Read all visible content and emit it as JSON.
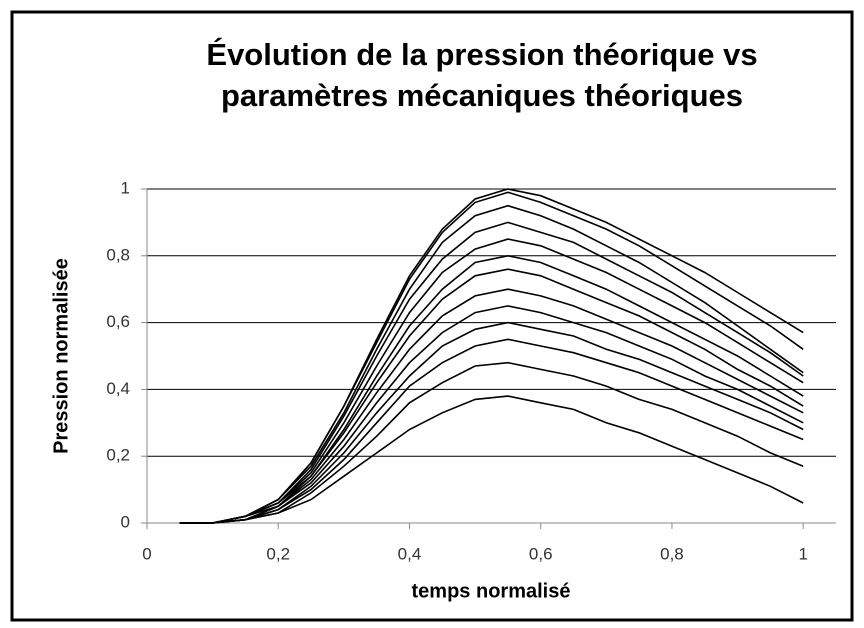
{
  "chart_data": {
    "type": "line",
    "title": [
      "Évolution de la pression théorique vs",
      "paramètres mécaniques théoriques"
    ],
    "xlabel": "temps normalisé",
    "ylabel": "Pression normalisée",
    "x": [
      0.05,
      0.1,
      0.15,
      0.2,
      0.25,
      0.3,
      0.35,
      0.4,
      0.45,
      0.5,
      0.55,
      0.6,
      0.65,
      0.7,
      0.75,
      0.8,
      0.85,
      0.9,
      0.95,
      1
    ],
    "series": [
      {
        "color": "#000000",
        "values": [
          0,
          0,
          0.02,
          0.07,
          0.18,
          0.35,
          0.55,
          0.74,
          0.88,
          0.97,
          1.0,
          0.98,
          0.94,
          0.9,
          0.85,
          0.8,
          0.75,
          0.69,
          0.63,
          0.57
        ]
      },
      {
        "color": "#000000",
        "values": [
          0,
          0,
          0.02,
          0.07,
          0.18,
          0.35,
          0.54,
          0.73,
          0.87,
          0.96,
          0.99,
          0.96,
          0.92,
          0.88,
          0.83,
          0.77,
          0.71,
          0.65,
          0.59,
          0.52
        ]
      },
      {
        "color": "#000000",
        "values": [
          0,
          0,
          0.02,
          0.07,
          0.17,
          0.33,
          0.52,
          0.7,
          0.84,
          0.92,
          0.95,
          0.92,
          0.88,
          0.83,
          0.78,
          0.72,
          0.66,
          0.59,
          0.52,
          0.45
        ]
      },
      {
        "color": "#000000",
        "values": [
          0,
          0,
          0.02,
          0.06,
          0.16,
          0.32,
          0.5,
          0.67,
          0.79,
          0.87,
          0.9,
          0.87,
          0.84,
          0.79,
          0.74,
          0.69,
          0.63,
          0.57,
          0.51,
          0.44
        ]
      },
      {
        "color": "#000000",
        "values": [
          0,
          0,
          0.02,
          0.06,
          0.15,
          0.3,
          0.47,
          0.63,
          0.75,
          0.82,
          0.85,
          0.83,
          0.79,
          0.75,
          0.7,
          0.65,
          0.6,
          0.54,
          0.48,
          0.42
        ]
      },
      {
        "color": "#000000",
        "values": [
          0,
          0,
          0.02,
          0.06,
          0.14,
          0.28,
          0.44,
          0.59,
          0.7,
          0.78,
          0.8,
          0.78,
          0.74,
          0.7,
          0.65,
          0.6,
          0.55,
          0.5,
          0.44,
          0.38
        ]
      },
      {
        "color": "#000000",
        "values": [
          0,
          0,
          0.02,
          0.05,
          0.14,
          0.27,
          0.42,
          0.56,
          0.67,
          0.74,
          0.76,
          0.74,
          0.7,
          0.66,
          0.62,
          0.57,
          0.52,
          0.46,
          0.41,
          0.35
        ]
      },
      {
        "color": "#000000",
        "values": [
          0,
          0,
          0.01,
          0.05,
          0.13,
          0.25,
          0.39,
          0.52,
          0.62,
          0.68,
          0.7,
          0.68,
          0.65,
          0.61,
          0.57,
          0.53,
          0.48,
          0.43,
          0.38,
          0.33
        ]
      },
      {
        "color": "#000000",
        "values": [
          0,
          0,
          0.01,
          0.05,
          0.12,
          0.23,
          0.36,
          0.48,
          0.57,
          0.63,
          0.65,
          0.63,
          0.6,
          0.57,
          0.53,
          0.49,
          0.44,
          0.4,
          0.35,
          0.3
        ]
      },
      {
        "color": "#000000",
        "values": [
          0,
          0,
          0.01,
          0.04,
          0.11,
          0.21,
          0.33,
          0.44,
          0.53,
          0.58,
          0.6,
          0.58,
          0.56,
          0.52,
          0.49,
          0.45,
          0.41,
          0.37,
          0.33,
          0.28
        ]
      },
      {
        "color": "#000000",
        "values": [
          0,
          0,
          0.01,
          0.04,
          0.1,
          0.19,
          0.3,
          0.41,
          0.48,
          0.53,
          0.55,
          0.53,
          0.51,
          0.48,
          0.45,
          0.41,
          0.37,
          0.33,
          0.29,
          0.25
        ]
      },
      {
        "color": "#000000",
        "values": [
          0,
          0,
          0.01,
          0.03,
          0.09,
          0.17,
          0.26,
          0.36,
          0.42,
          0.47,
          0.48,
          0.46,
          0.44,
          0.41,
          0.37,
          0.34,
          0.3,
          0.26,
          0.21,
          0.17
        ]
      },
      {
        "color": "#000000",
        "values": [
          0,
          0,
          0.01,
          0.03,
          0.07,
          0.14,
          0.21,
          0.28,
          0.33,
          0.37,
          0.38,
          0.36,
          0.34,
          0.3,
          0.27,
          0.23,
          0.19,
          0.15,
          0.11,
          0.06
        ]
      }
    ],
    "xlim": [
      0,
      1.05
    ],
    "ylim": [
      0,
      1
    ],
    "xticks": [
      0,
      {
        "value": 0.2,
        "label": "0,2"
      },
      {
        "value": 0.4,
        "label": "0,4"
      },
      {
        "value": 0.6,
        "label": "0,6"
      },
      {
        "value": 0.8,
        "label": "0,8"
      },
      1
    ],
    "yticks": [
      0,
      {
        "value": 0.2,
        "label": "0,2"
      },
      {
        "value": 0.4,
        "label": "0,4"
      },
      {
        "value": 0.6,
        "label": "0,6"
      },
      {
        "value": 0.8,
        "label": "0,8"
      },
      1
    ],
    "grid": true
  }
}
